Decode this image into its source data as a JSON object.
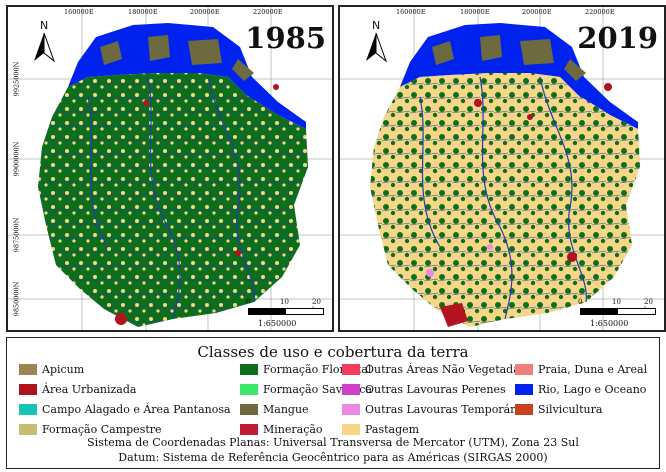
{
  "panels": [
    {
      "year": "1985"
    },
    {
      "year": "2019"
    }
  ],
  "grid": {
    "x_ticks": [
      "160000E",
      "180000E",
      "200000E",
      "220000E"
    ],
    "y_ticks": [
      "9925000N",
      "9900000N",
      "9875000N",
      "9850000N"
    ]
  },
  "north_label": "N",
  "scale": {
    "zero": "0",
    "mid": "10",
    "end": "20 km",
    "ratio": "1:650000"
  },
  "legend": {
    "title": "Classes de uso e cobertura da terra",
    "classes": [
      {
        "label": "Apicum",
        "color": "#9b8552"
      },
      {
        "label": "Área Urbanizada",
        "color": "#b3121f"
      },
      {
        "label": "Campo Alagado e Área Pantanosa",
        "color": "#14c4b4"
      },
      {
        "label": "Formação Campestre",
        "color": "#c8bb72"
      },
      {
        "label": "Formação Florestal",
        "color": "#0d6e1b"
      },
      {
        "label": "Formação Savânica",
        "color": "#3be86a"
      },
      {
        "label": "Mangue",
        "color": "#6c6a3e"
      },
      {
        "label": "Mineração",
        "color": "#c11b36"
      },
      {
        "label": "Outras Áreas Não Vegetadas",
        "color": "#f43c5c"
      },
      {
        "label": "Outras Lavouras Perenes",
        "color": "#cf3fc8"
      },
      {
        "label": "Outras Lavouras Temporárias",
        "color": "#ee88e6"
      },
      {
        "label": "Pastagem",
        "color": "#f7d688"
      },
      {
        "label": "Praia, Duna e Areal",
        "color": "#ef7f7a"
      },
      {
        "label": "Rio, Lago e Oceano",
        "color": "#0022ee"
      },
      {
        "label": "Silvicultura",
        "color": "#c9411f"
      }
    ]
  },
  "footer": {
    "line1": "Sistema de Coordenadas Planas: Universal Transversa de Mercator (UTM), Zona 23 Sul",
    "line2": "Datum: Sistema de Referência Geocêntrico para as Américas (SIRGAS 2000)"
  }
}
